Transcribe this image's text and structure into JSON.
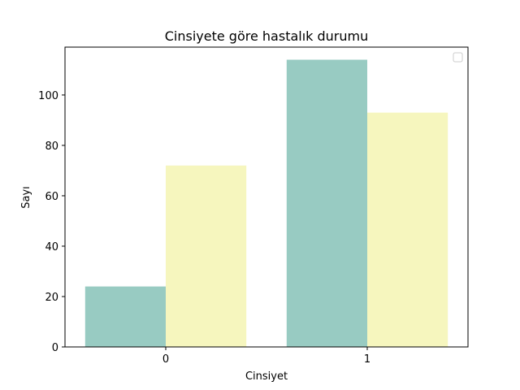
{
  "chart_data": {
    "type": "bar",
    "title": "Cinsiyete göre hastalık durumu",
    "xlabel": "Cinsiyet",
    "ylabel": "Sayı",
    "categories": [
      "0",
      "1"
    ],
    "series": [
      {
        "values": [
          24,
          114
        ],
        "color": "#98cbc2"
      },
      {
        "values": [
          72,
          93
        ],
        "color": "#f6f6be"
      }
    ],
    "ylim": [
      0,
      119
    ],
    "yticks": [
      0,
      20,
      40,
      60,
      80,
      100
    ],
    "grid": false,
    "legend": "top-right"
  }
}
